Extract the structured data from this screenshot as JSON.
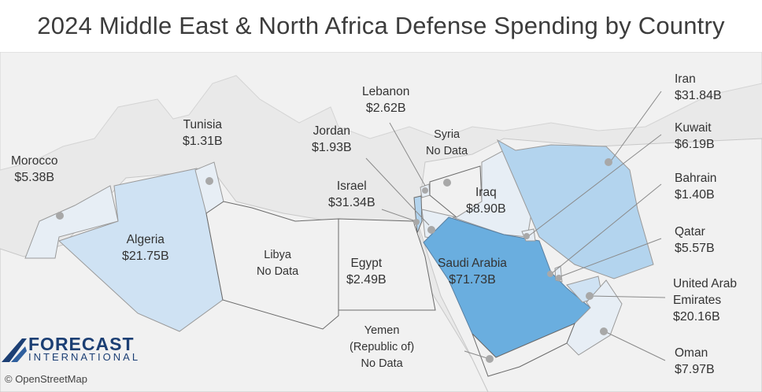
{
  "title": "2024 Middle East & North Africa Defense Spending by Country",
  "colors": {
    "land": "#f1f1f1",
    "sea": "#dedede",
    "low": "#e7eef5",
    "mid": "#cfe2f3",
    "high": "#b3d4ee",
    "top": "#6aaedf",
    "leader": "#8a8a8a",
    "marker": "#a8a8a8"
  },
  "countries": {
    "morocco": {
      "name": "Morocco",
      "value": "$5.38B"
    },
    "algeria": {
      "name": "Algeria",
      "value": "$21.75B"
    },
    "tunisia": {
      "name": "Tunisia",
      "value": "$1.31B"
    },
    "libya": {
      "name": "Libya",
      "value": "No Data"
    },
    "egypt": {
      "name": "Egypt",
      "value": "$2.49B"
    },
    "israel": {
      "name": "Israel",
      "value": "$31.34B"
    },
    "jordan": {
      "name": "Jordan",
      "value": "$1.93B"
    },
    "lebanon": {
      "name": "Lebanon",
      "value": "$2.62B"
    },
    "syria": {
      "name": "Syria",
      "value": "No Data"
    },
    "iraq": {
      "name": "Iraq",
      "value": "$8.90B"
    },
    "saudi": {
      "name": "Saudi Arabia",
      "value": "$71.73B"
    },
    "yemen": {
      "name1": "Yemen",
      "name2": "(Republic of)",
      "value": "No Data"
    },
    "iran": {
      "name": "Iran",
      "value": "$31.84B"
    },
    "kuwait": {
      "name": "Kuwait",
      "value": "$6.19B"
    },
    "bahrain": {
      "name": "Bahrain",
      "value": "$1.40B"
    },
    "qatar": {
      "name": "Qatar",
      "value": "$5.57B"
    },
    "uae": {
      "name1": "United Arab",
      "name2": "Emirates",
      "value": "$20.16B"
    },
    "oman": {
      "name": "Oman",
      "value": "$7.97B"
    }
  },
  "logo": {
    "word": "FORECAST",
    "sub": "INTERNATIONAL"
  },
  "credit": "© OpenStreetMap"
}
